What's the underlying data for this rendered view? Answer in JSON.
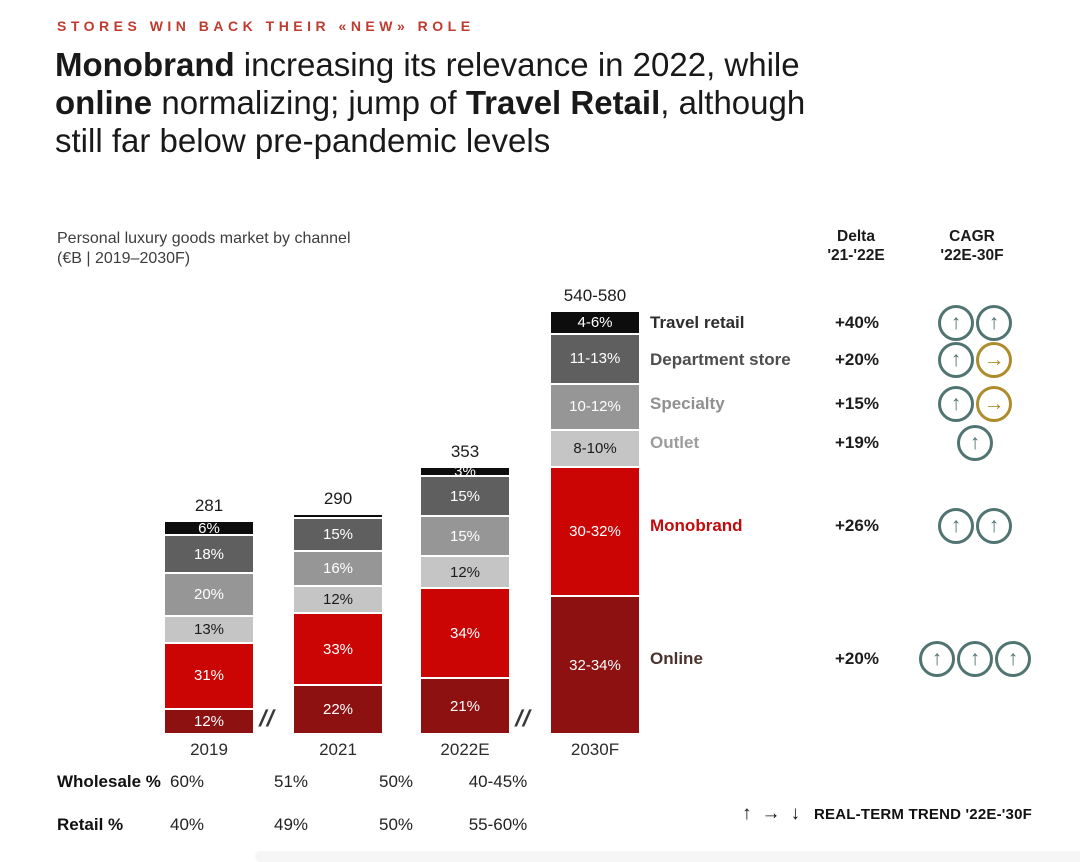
{
  "kicker": "STORES WIN BACK THEIR «NEW» ROLE",
  "headline": {
    "parts": [
      {
        "text": "Monobrand",
        "bold": true
      },
      {
        "text": " increasing its relevance in 2022, while",
        "bold": false,
        "br": true
      },
      {
        "text": "online",
        "bold": true
      },
      {
        "text": " normalizing; jump of ",
        "bold": false
      },
      {
        "text": "Travel Retail",
        "bold": true
      },
      {
        "text": ", although",
        "bold": false,
        "br": true
      },
      {
        "text": "still far below pre-pandemic levels",
        "bold": false
      }
    ]
  },
  "chart_header": {
    "title_line1": "Personal luxury goods market by channel",
    "title_line2": "(€B | 2019–2030F)"
  },
  "columns": {
    "delta_line1": "Delta",
    "delta_line2": "'21-'22E",
    "cagr_line1": "CAGR",
    "cagr_line2": "'22E-30F"
  },
  "chart_data": {
    "type": "bar",
    "stacked": true,
    "title": "Personal luxury goods market by channel",
    "unit": "€B",
    "categories": [
      "2019",
      "2021",
      "2022E",
      "2030F"
    ],
    "totals_display": [
      "281",
      "290",
      "353",
      "540-580"
    ],
    "totals_numeric": [
      281,
      290,
      353,
      560
    ],
    "axis_breaks_between": [
      [
        "2019",
        "2021"
      ],
      [
        "2022E",
        "2030F"
      ]
    ],
    "break_mark": "//",
    "series_top_to_bottom": [
      {
        "name": "Travel retail",
        "color": "#0d0d0d",
        "text_color": "#ffffff",
        "labels": [
          "6%",
          "",
          "3%",
          "4-6%"
        ],
        "pct": [
          6,
          1,
          3,
          5
        ]
      },
      {
        "name": "Department store",
        "color": "#5f5f5f",
        "text_color": "#ffffff",
        "labels": [
          "18%",
          "15%",
          "15%",
          "11-13%"
        ],
        "pct": [
          18,
          15,
          15,
          12
        ]
      },
      {
        "name": "Specialty",
        "color": "#969696",
        "text_color": "#ffffff",
        "labels": [
          "20%",
          "16%",
          "15%",
          "10-12%"
        ],
        "pct": [
          20,
          16,
          15,
          11
        ]
      },
      {
        "name": "Outlet",
        "color": "#c5c5c5",
        "text_color": "#1c1c1c",
        "labels": [
          "13%",
          "12%",
          "12%",
          "8-10%"
        ],
        "pct": [
          13,
          12,
          12,
          9
        ]
      },
      {
        "name": "Monobrand",
        "color": "#cb0404",
        "text_color": "#ffffff",
        "labels": [
          "31%",
          "33%",
          "34%",
          "30-32%"
        ],
        "pct": [
          31,
          33,
          34,
          31
        ]
      },
      {
        "name": "Online",
        "color": "#8e1111",
        "text_color": "#ffffff",
        "labels": [
          "12%",
          "22%",
          "21%",
          "32-34%"
        ],
        "pct": [
          12,
          22,
          21,
          33
        ]
      }
    ],
    "legend_rows": [
      {
        "label": "Travel retail",
        "label_color": "#2e2e2e",
        "delta": "+40%",
        "cagr_arrows": [
          "up",
          "up"
        ]
      },
      {
        "label": "Department store",
        "label_color": "#4e4e4e",
        "delta": "+20%",
        "cagr_arrows": [
          "up",
          "right"
        ]
      },
      {
        "label": "Specialty",
        "label_color": "#8f8f8f",
        "delta": "+15%",
        "cagr_arrows": [
          "up",
          "right"
        ]
      },
      {
        "label": "Outlet",
        "label_color": "#9c9c9c",
        "delta": "+19%",
        "cagr_arrows": [
          "up"
        ]
      },
      {
        "label": "Monobrand",
        "label_color": "#c00c0c",
        "delta": "+26%",
        "cagr_arrows": [
          "up",
          "up"
        ]
      },
      {
        "label": "Online",
        "label_color": "#4a332c",
        "delta": "+20%",
        "cagr_arrows": [
          "up",
          "up",
          "up"
        ]
      }
    ],
    "bottom_table": [
      {
        "label": "Wholesale %",
        "values": [
          "60%",
          "51%",
          "50%",
          "40-45%"
        ]
      },
      {
        "label": "Retail %",
        "values": [
          "40%",
          "49%",
          "50%",
          "55-60%"
        ]
      }
    ]
  },
  "trend_legend": {
    "up": "↑",
    "right": "→",
    "down": "↓",
    "text": "REAL-TERM TREND '22E-'30F"
  },
  "colors": {
    "accent_red": "#cb0404",
    "dark_red": "#8e1111",
    "kicker_red": "#bf3b2f",
    "teal": "#507471",
    "gold": "#ad8c2c"
  }
}
